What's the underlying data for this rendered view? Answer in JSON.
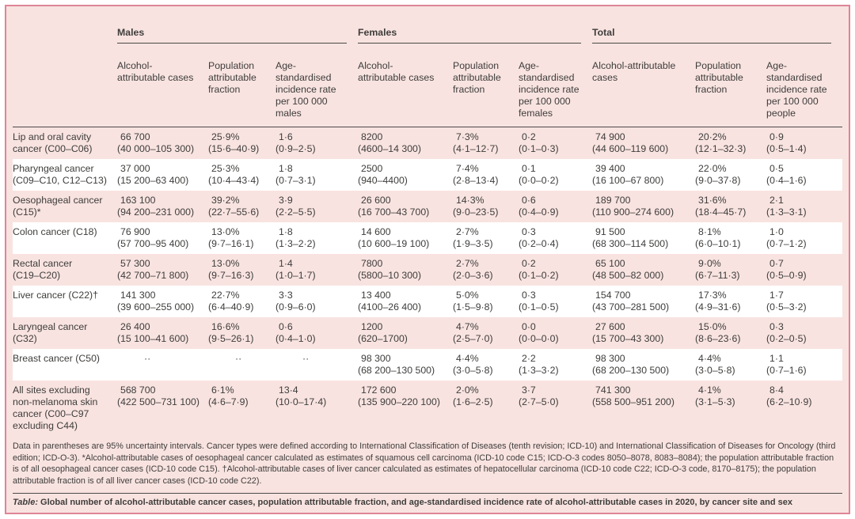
{
  "table": {
    "group_headers": [
      "Males",
      "Females",
      "Total"
    ],
    "column_headers": [
      "Alcohol-\nattributable cases",
      "Population\nattributable\nfraction",
      "Age-\nstandardised\nincidence rate\nper 100 000\nmales",
      "Alcohol-\nattributable cases",
      "Population\nattributable\nfraction",
      "Age-\nstandardised\nincidence rate\nper 100 000\nfemales",
      "Alcohol-attributable\ncases",
      "Population\nattributable\nfraction",
      "Age-\nstandardised\nincidence rate\nper 100 000\npeople"
    ],
    "rows": [
      {
        "site": "Lip and oral cavity\ncancer (C00–C06)",
        "cells": [
          "66 700\n(40 000–105 300)",
          "25·9%\n(15·6–40·9)",
          "1·6\n(0·9–2·5)",
          "8200\n(4600–14 300)",
          "7·3%\n(4·1–12·7)",
          "0·2\n(0·1–0·3)",
          "74 900\n(44 600–119 600)",
          "20·2%\n(12·1–32·3)",
          "0·9\n(0·5–1·4)"
        ]
      },
      {
        "site": "Pharyngeal cancer\n(C09–C10, C12–C13)",
        "cells": [
          "37 000\n(15 200–63 400)",
          "25·3%\n(10·4–43·4)",
          "1·8\n(0·7–3·1)",
          "2500\n(940–4400)",
          "7·4%\n(2·8–13·4)",
          "0·1\n(0·0–0·2)",
          "39 400\n(16 100–67 800)",
          "22·0%\n(9·0–37·8)",
          "0·5\n(0·4–1·6)"
        ]
      },
      {
        "site": "Oesophageal cancer\n(C15)*",
        "cells": [
          "163 100\n(94 200–231 000)",
          "39·2%\n(22·7–55·6)",
          "3·9\n(2·2–5·5)",
          "26 600\n(16 700–43 700)",
          "14·3%\n(9·0–23·5)",
          "0·6\n(0·4–0·9)",
          "189 700\n(110 900–274 600)",
          "31·6%\n(18·4–45·7)",
          "2·1\n(1·3–3·1)"
        ]
      },
      {
        "site": "Colon cancer (C18)",
        "cells": [
          "76 900\n(57 700–95 400)",
          "13·0%\n(9·7–16·1)",
          "1·8\n(1·3–2·2)",
          "14 600\n(10 600–19 100)",
          "2·7%\n(1·9–3·5)",
          "0·3\n(0·2–0·4)",
          "91 500\n(68 300–114 500)",
          "8·1%\n(6·0–10·1)",
          "1·0\n(0·7–1·2)"
        ]
      },
      {
        "site": "Rectal cancer\n(C19–C20)",
        "cells": [
          "57 300\n(42 700–71 800)",
          "13·0%\n(9·7–16·3)",
          "1·4\n(1·0–1·7)",
          "7800\n(5800–10 300)",
          "2·7%\n(2·0–3·6)",
          "0·2\n(0·1–0·2)",
          "65 100\n(48 500–82 000)",
          "9·0%\n(6·7–11·3)",
          "0·7\n(0·5–0·9)"
        ]
      },
      {
        "site": "Liver cancer (C22)†",
        "cells": [
          "141 300\n(39 600–255 000)",
          "22·7%\n(6·4–40·9)",
          "3·3\n(0·9–6·0)",
          "13 400\n(4100–26 400)",
          "5·0%\n(1·5–9·8)",
          "0·3\n(0·1–0·5)",
          "154 700\n(43 700–281 500)",
          "17·3%\n(4·9–31·6)",
          "1·7\n(0·5–3·2)"
        ]
      },
      {
        "site": "Laryngeal cancer\n(C32)",
        "cells": [
          "26 400\n(15 100–41 600)",
          "16·6%\n(9·5–26·1)",
          "0·6\n(0·4–1·0)",
          "1200\n(620–1700)",
          "4·7%\n(2·5–7·0)",
          "0·0\n(0·0–0·0)",
          "27 600\n(15 700–43 300)",
          "15·0%\n(8·6–23·6)",
          "0·3\n(0·2–0·5)"
        ]
      },
      {
        "site": "Breast cancer (C50)",
        "cells": [
          "··",
          "··",
          "··",
          "98 300\n(68 200–130 500)",
          "4·4%\n(3·0–5·8)",
          "2·2\n(1·3–3·2)",
          "98 300\n(68 200–130 500)",
          "4·4%\n(3·0–5·8)",
          "1·1\n(0·7–1·6)"
        ]
      },
      {
        "site": "All sites excluding\nnon-melanoma skin\ncancer (C00–C97\nexcluding C44)",
        "cells": [
          "568 700\n(422 500–731 100)",
          "6·1%\n(4·6–7·9)",
          "13·4\n(10·0–17·4)",
          "172 600\n(135 900–220 100)",
          "2·0%\n(1·6–2·5)",
          "3·7\n(2·7–5·0)",
          "741 300\n(558 500–951 200)",
          "4·1%\n(3·1–5·3)",
          "8·4\n(6·2–10·9)"
        ]
      }
    ]
  },
  "footnote": "Data in parentheses are 95% uncertainty intervals. Cancer types were defined according to International Classification of Diseases (tenth revision; ICD-10) and International Classification of Diseases for Oncology (third edition; ICD-O-3). *Alcohol-attributable cases of oesophageal cancer calculated as estimates of squamous cell carcinoma (ICD-10 code C15; ICD-O-3 codes 8050–8078, 8083–8084); the population attributable fraction is of all oesophageal cancer cases (ICD-10 code C15). †Alcohol-attributable cases of liver cancer calculated as estimates of hepatocellular carcinoma (ICD-10 code C22; ICD-O-3 code, 8170–8175); the population attributable fraction is of all liver cancer cases (ICD-10 code C22).",
  "caption": {
    "label": "Table:",
    "text": " Global number of alcohol-attributable cancer cases, population attributable fraction, and age-standardised incidence rate of alcohol-attributable cases in 2020, by cancer site and sex"
  },
  "colors": {
    "frame_border": "#df8496",
    "background_pink": "#f8e3e0",
    "stripe_white": "#ffffff",
    "rule_dark": "#4a4a48",
    "text": "#3e3d3b"
  }
}
